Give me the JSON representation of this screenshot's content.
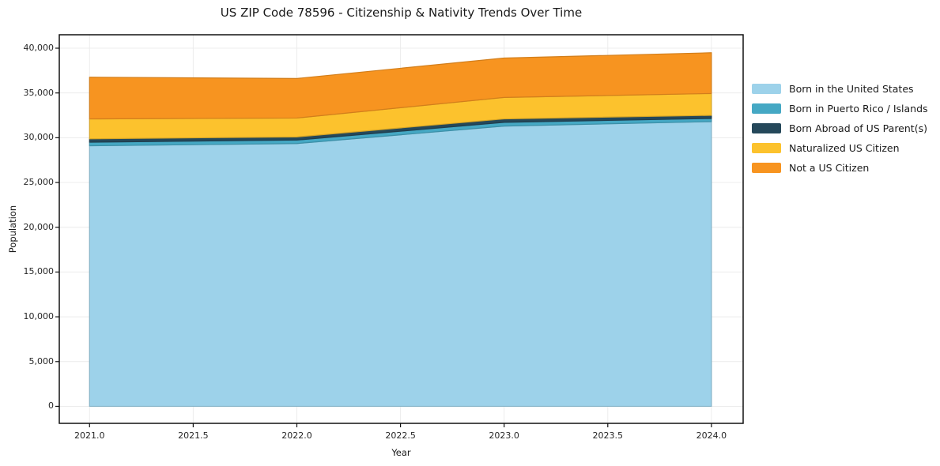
{
  "figure": {
    "background": "#ffffff",
    "plot_background": "#ffffff",
    "grid_color": "#ececec",
    "spine_color": "#111111",
    "text_color": "#1a1a1a"
  },
  "chart_data": {
    "type": "area",
    "stacked": true,
    "title": "US ZIP Code 78596 - Citizenship & Nativity Trends Over Time",
    "xlabel": "Year",
    "ylabel": "Population",
    "x": [
      2021,
      2022,
      2023,
      2024
    ],
    "series": [
      {
        "name": "Born in the United States",
        "color": "#9dd2ea",
        "values": [
          29100,
          29350,
          31300,
          31800
        ]
      },
      {
        "name": "Born in Puerto Rico / Islands",
        "color": "#45a8c4",
        "values": [
          400,
          390,
          420,
          350
        ]
      },
      {
        "name": "Born Abroad of US Parent(s)",
        "color": "#25485a",
        "values": [
          380,
          350,
          380,
          350
        ]
      },
      {
        "name": "Naturalized US Citizen",
        "color": "#fcc22d",
        "values": [
          2220,
          2110,
          2400,
          2440
        ]
      },
      {
        "name": "Not a US Citizen",
        "color": "#f79420",
        "values": [
          4660,
          4415,
          4400,
          4550
        ]
      }
    ],
    "totals": [
      36760,
      36615,
      38900,
      39490
    ],
    "xticks": {
      "values": [
        2021.0,
        2021.5,
        2022.0,
        2022.5,
        2023.0,
        2023.5,
        2024.0
      ],
      "labels": [
        "2021.0",
        "2021.5",
        "2022.0",
        "2022.5",
        "2023.0",
        "2023.5",
        "2024.0"
      ]
    },
    "yticks": {
      "values": [
        0,
        5000,
        10000,
        15000,
        20000,
        25000,
        30000,
        35000,
        40000
      ],
      "labels": [
        "0",
        "5,000",
        "10,000",
        "15,000",
        "20,000",
        "25,000",
        "30,000",
        "35,000",
        "40,000"
      ]
    },
    "xlim": [
      2020.854,
      2024.153
    ],
    "ylim": [
      -1900,
      41500
    ],
    "grid": true,
    "legend_position": "right-outside"
  }
}
